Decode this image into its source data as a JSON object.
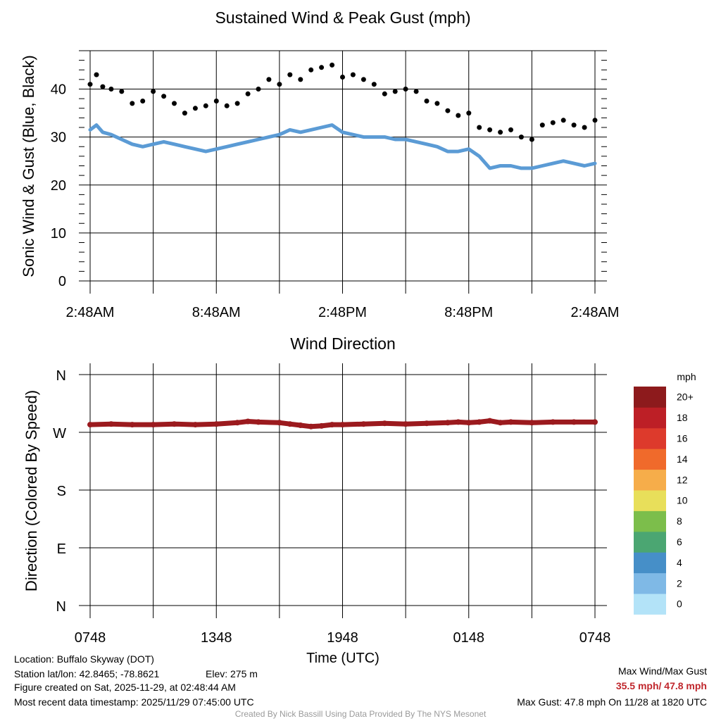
{
  "chart_data": [
    {
      "type": "line+scatter",
      "title": "Sustained Wind & Peak Gust (mph)",
      "ylabel": "Sonic Wind & Gust (Blue, Black)",
      "xlabel": "",
      "x_tick_labels": [
        "2:48AM",
        "8:48AM",
        "2:48PM",
        "8:48PM",
        "2:48AM"
      ],
      "y_ticks": [
        0,
        10,
        20,
        30,
        40
      ],
      "ylim": [
        0,
        48
      ],
      "x_range_hours": [
        0,
        24
      ],
      "series": [
        {
          "name": "Sustained Wind",
          "color": "#5b9bd5",
          "style": "line",
          "points": [
            [
              0,
              31.5
            ],
            [
              0.3,
              32.5
            ],
            [
              0.6,
              31
            ],
            [
              1,
              30.5
            ],
            [
              1.5,
              29.5
            ],
            [
              2,
              28.5
            ],
            [
              2.5,
              28
            ],
            [
              3,
              28.5
            ],
            [
              3.5,
              29
            ],
            [
              4,
              28.5
            ],
            [
              4.5,
              28
            ],
            [
              5,
              27.5
            ],
            [
              5.5,
              27
            ],
            [
              6,
              27.5
            ],
            [
              6.5,
              28
            ],
            [
              7,
              28.5
            ],
            [
              7.5,
              29
            ],
            [
              8,
              29.5
            ],
            [
              8.5,
              30
            ],
            [
              9,
              30.5
            ],
            [
              9.5,
              31.5
            ],
            [
              10,
              31
            ],
            [
              10.5,
              31.5
            ],
            [
              11,
              32
            ],
            [
              11.5,
              32.5
            ],
            [
              12,
              31
            ],
            [
              12.5,
              30.5
            ],
            [
              13,
              30
            ],
            [
              13.5,
              30
            ],
            [
              14,
              30
            ],
            [
              14.5,
              29.5
            ],
            [
              15,
              29.5
            ],
            [
              15.5,
              29
            ],
            [
              16,
              28.5
            ],
            [
              16.5,
              28
            ],
            [
              17,
              27
            ],
            [
              17.5,
              27
            ],
            [
              18,
              27.5
            ],
            [
              18.5,
              26
            ],
            [
              19,
              23.5
            ],
            [
              19.5,
              24
            ],
            [
              20,
              24
            ],
            [
              20.5,
              23.5
            ],
            [
              21,
              23.5
            ],
            [
              21.5,
              24
            ],
            [
              22,
              24.5
            ],
            [
              22.5,
              25
            ],
            [
              23,
              24.5
            ],
            [
              23.5,
              24
            ],
            [
              24,
              24.5
            ]
          ]
        },
        {
          "name": "Peak Gust",
          "color": "#000000",
          "style": "points",
          "points": [
            [
              0,
              41
            ],
            [
              0.3,
              43
            ],
            [
              0.6,
              40.5
            ],
            [
              1,
              40
            ],
            [
              1.5,
              39.5
            ],
            [
              2,
              37
            ],
            [
              2.5,
              37.5
            ],
            [
              3,
              39.5
            ],
            [
              3.5,
              38.5
            ],
            [
              4,
              37
            ],
            [
              4.5,
              35
            ],
            [
              5,
              36
            ],
            [
              5.5,
              36.5
            ],
            [
              6,
              37.5
            ],
            [
              6.5,
              36.5
            ],
            [
              7,
              37
            ],
            [
              7.5,
              39
            ],
            [
              8,
              40
            ],
            [
              8.5,
              42
            ],
            [
              9,
              41
            ],
            [
              9.5,
              43
            ],
            [
              10,
              42
            ],
            [
              10.5,
              44
            ],
            [
              11,
              44.5
            ],
            [
              11.5,
              45
            ],
            [
              12,
              42.5
            ],
            [
              12.5,
              43
            ],
            [
              13,
              42
            ],
            [
              13.5,
              41
            ],
            [
              14,
              39
            ],
            [
              14.5,
              39.5
            ],
            [
              15,
              40
            ],
            [
              15.5,
              39.5
            ],
            [
              16,
              37.5
            ],
            [
              16.5,
              37
            ],
            [
              17,
              35.5
            ],
            [
              17.5,
              34.5
            ],
            [
              18,
              35
            ],
            [
              18.5,
              32
            ],
            [
              19,
              31.5
            ],
            [
              19.5,
              31
            ],
            [
              20,
              31.5
            ],
            [
              20.5,
              30
            ],
            [
              21,
              29.5
            ],
            [
              21.5,
              32.5
            ],
            [
              22,
              33
            ],
            [
              22.5,
              33.5
            ],
            [
              23,
              32.5
            ],
            [
              23.5,
              32
            ],
            [
              24,
              33.5
            ]
          ]
        }
      ]
    },
    {
      "type": "scatter",
      "title": "Wind Direction",
      "ylabel": "Direction (Colored By Speed)",
      "xlabel": "Time (UTC)",
      "x_tick_labels": [
        "0748",
        "1348",
        "1948",
        "0148",
        "0748"
      ],
      "y_tick_labels": [
        "N",
        "W",
        "S",
        "E",
        "N"
      ],
      "y_tick_degrees": [
        360,
        270,
        180,
        90,
        0
      ],
      "ylim_degrees": [
        0,
        360
      ],
      "x_range_hours": [
        0,
        24
      ],
      "series": [
        {
          "name": "Wind Direction",
          "color": "#9b1a1e",
          "points": [
            [
              0,
              282
            ],
            [
              1,
              283
            ],
            [
              2,
              282
            ],
            [
              3,
              282
            ],
            [
              4,
              283
            ],
            [
              5,
              282
            ],
            [
              6,
              283
            ],
            [
              7,
              285
            ],
            [
              7.5,
              287
            ],
            [
              8,
              286
            ],
            [
              9,
              285
            ],
            [
              9.5,
              283
            ],
            [
              10,
              281
            ],
            [
              10.5,
              279
            ],
            [
              11,
              280
            ],
            [
              11.5,
              282
            ],
            [
              12,
              282
            ],
            [
              13,
              283
            ],
            [
              14,
              284
            ],
            [
              15,
              283
            ],
            [
              16,
              284
            ],
            [
              17,
              285
            ],
            [
              17.5,
              286
            ],
            [
              18,
              285
            ],
            [
              18.5,
              286
            ],
            [
              19,
              288
            ],
            [
              19.5,
              285
            ],
            [
              20,
              286
            ],
            [
              21,
              285
            ],
            [
              22,
              286
            ],
            [
              23,
              286
            ],
            [
              24,
              286
            ]
          ]
        }
      ],
      "colorbar": {
        "title": "mph",
        "labels": [
          "0",
          "2",
          "4",
          "6",
          "8",
          "10",
          "12",
          "14",
          "16",
          "18",
          "20+"
        ],
        "colors": [
          "#b3e3f8",
          "#7fb9e6",
          "#468fc8",
          "#4ba672",
          "#7cbe4b",
          "#e8df5a",
          "#f6ad4a",
          "#f06a2b",
          "#dd3a2c",
          "#bd1f26",
          "#8d1a1c"
        ]
      }
    }
  ],
  "footer": {
    "location": "Location: Buffalo Skyway (DOT)",
    "latlon": "Station lat/lon: 42.8465; -78.8621",
    "elev": "Elev: 275 m",
    "created": "Figure created on Sat, 2025-11-29, at 02:48:44 AM",
    "recent": "Most recent data timestamp: 2025/11/29 07:45:00 UTC",
    "max_title": "Max Wind/Max Gust",
    "max_values": "35.5 mph/ 47.8 mph",
    "max_gust": "Max Gust: 47.8 mph On 11/28 at 1820 UTC",
    "credit": "Created By Nick Bassill Using Data Provided By The NYS Mesonet"
  }
}
